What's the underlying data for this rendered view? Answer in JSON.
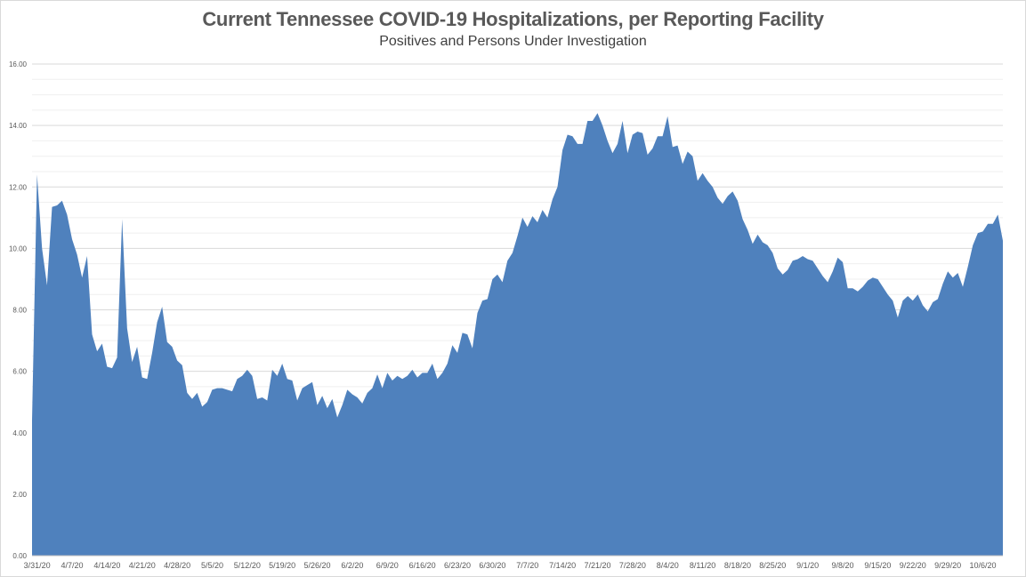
{
  "chart_data": {
    "type": "area",
    "title": "Current Tennessee COVID-19 Hospitalizations, per Reporting Facility",
    "subtitle": "Positives and Persons Under Investigation",
    "xlabel": "",
    "ylabel": "",
    "ylim": [
      0,
      16
    ],
    "yticks": [
      "0.00",
      "2.00",
      "4.00",
      "6.00",
      "8.00",
      "10.00",
      "12.00",
      "14.00",
      "16.00"
    ],
    "xticks": [
      "3/31/20",
      "4/7/20",
      "4/14/20",
      "4/21/20",
      "4/28/20",
      "5/5/20",
      "5/12/20",
      "5/19/20",
      "5/26/20",
      "6/2/20",
      "6/9/20",
      "6/16/20",
      "6/23/20",
      "6/30/20",
      "7/7/20",
      "7/14/20",
      "7/21/20",
      "7/28/20",
      "8/4/20",
      "8/11/20",
      "8/18/20",
      "8/25/20",
      "9/1/20",
      "9/8/20",
      "9/15/20",
      "9/22/20",
      "9/29/20",
      "10/6/20"
    ],
    "grid": true,
    "legend": "none",
    "fill_color": "#4f81bd",
    "start_date": "3/30/20",
    "series": [
      {
        "values": [
          4.4,
          12.4,
          10.0,
          8.8,
          11.35,
          11.4,
          11.55,
          11.1,
          10.3,
          9.8,
          9.05,
          9.75,
          7.2,
          6.65,
          6.9,
          6.15,
          6.1,
          6.45,
          10.95,
          7.4,
          6.3,
          6.8,
          5.8,
          5.75,
          6.6,
          7.6,
          8.1,
          6.95,
          6.8,
          6.35,
          6.2,
          5.3,
          5.1,
          5.3,
          4.85,
          5.0,
          5.4,
          5.45,
          5.45,
          5.4,
          5.35,
          5.75,
          5.85,
          6.05,
          5.85,
          5.1,
          5.15,
          5.05,
          6.05,
          5.85,
          6.25,
          5.75,
          5.7,
          5.05,
          5.45,
          5.55,
          5.65,
          4.9,
          5.2,
          4.8,
          5.1,
          4.5,
          4.9,
          5.4,
          5.25,
          5.15,
          4.95,
          5.3,
          5.45,
          5.9,
          5.45,
          5.95,
          5.7,
          5.85,
          5.75,
          5.85,
          6.05,
          5.8,
          5.95,
          5.95,
          6.25,
          5.75,
          5.95,
          6.25,
          6.85,
          6.6,
          7.25,
          7.2,
          6.75,
          7.9,
          8.3,
          8.35,
          9.0,
          9.15,
          8.9,
          9.6,
          9.85,
          10.4,
          11.0,
          10.7,
          11.05,
          10.85,
          11.25,
          11.0,
          11.6,
          12.0,
          13.2,
          13.7,
          13.65,
          13.4,
          13.4,
          14.15,
          14.15,
          14.4,
          14.0,
          13.5,
          13.1,
          13.4,
          14.15,
          13.1,
          13.7,
          13.8,
          13.75,
          13.05,
          13.25,
          13.65,
          13.65,
          14.3,
          13.3,
          13.35,
          12.75,
          13.15,
          13.0,
          12.2,
          12.45,
          12.2,
          12.0,
          11.65,
          11.45,
          11.7,
          11.85,
          11.55,
          10.95,
          10.6,
          10.15,
          10.45,
          10.2,
          10.1,
          9.85,
          9.35,
          9.15,
          9.3,
          9.6,
          9.65,
          9.75,
          9.65,
          9.6,
          9.35,
          9.1,
          8.9,
          9.25,
          9.7,
          9.55,
          8.7,
          8.7,
          8.6,
          8.75,
          8.95,
          9.05,
          9.0,
          8.75,
          8.5,
          8.3,
          7.75,
          8.3,
          8.45,
          8.3,
          8.5,
          8.15,
          7.95,
          8.25,
          8.35,
          8.85,
          9.25,
          9.05,
          9.2,
          8.75,
          9.4,
          10.1,
          10.5,
          10.55,
          10.8,
          10.8,
          11.1,
          10.25
        ]
      }
    ]
  }
}
